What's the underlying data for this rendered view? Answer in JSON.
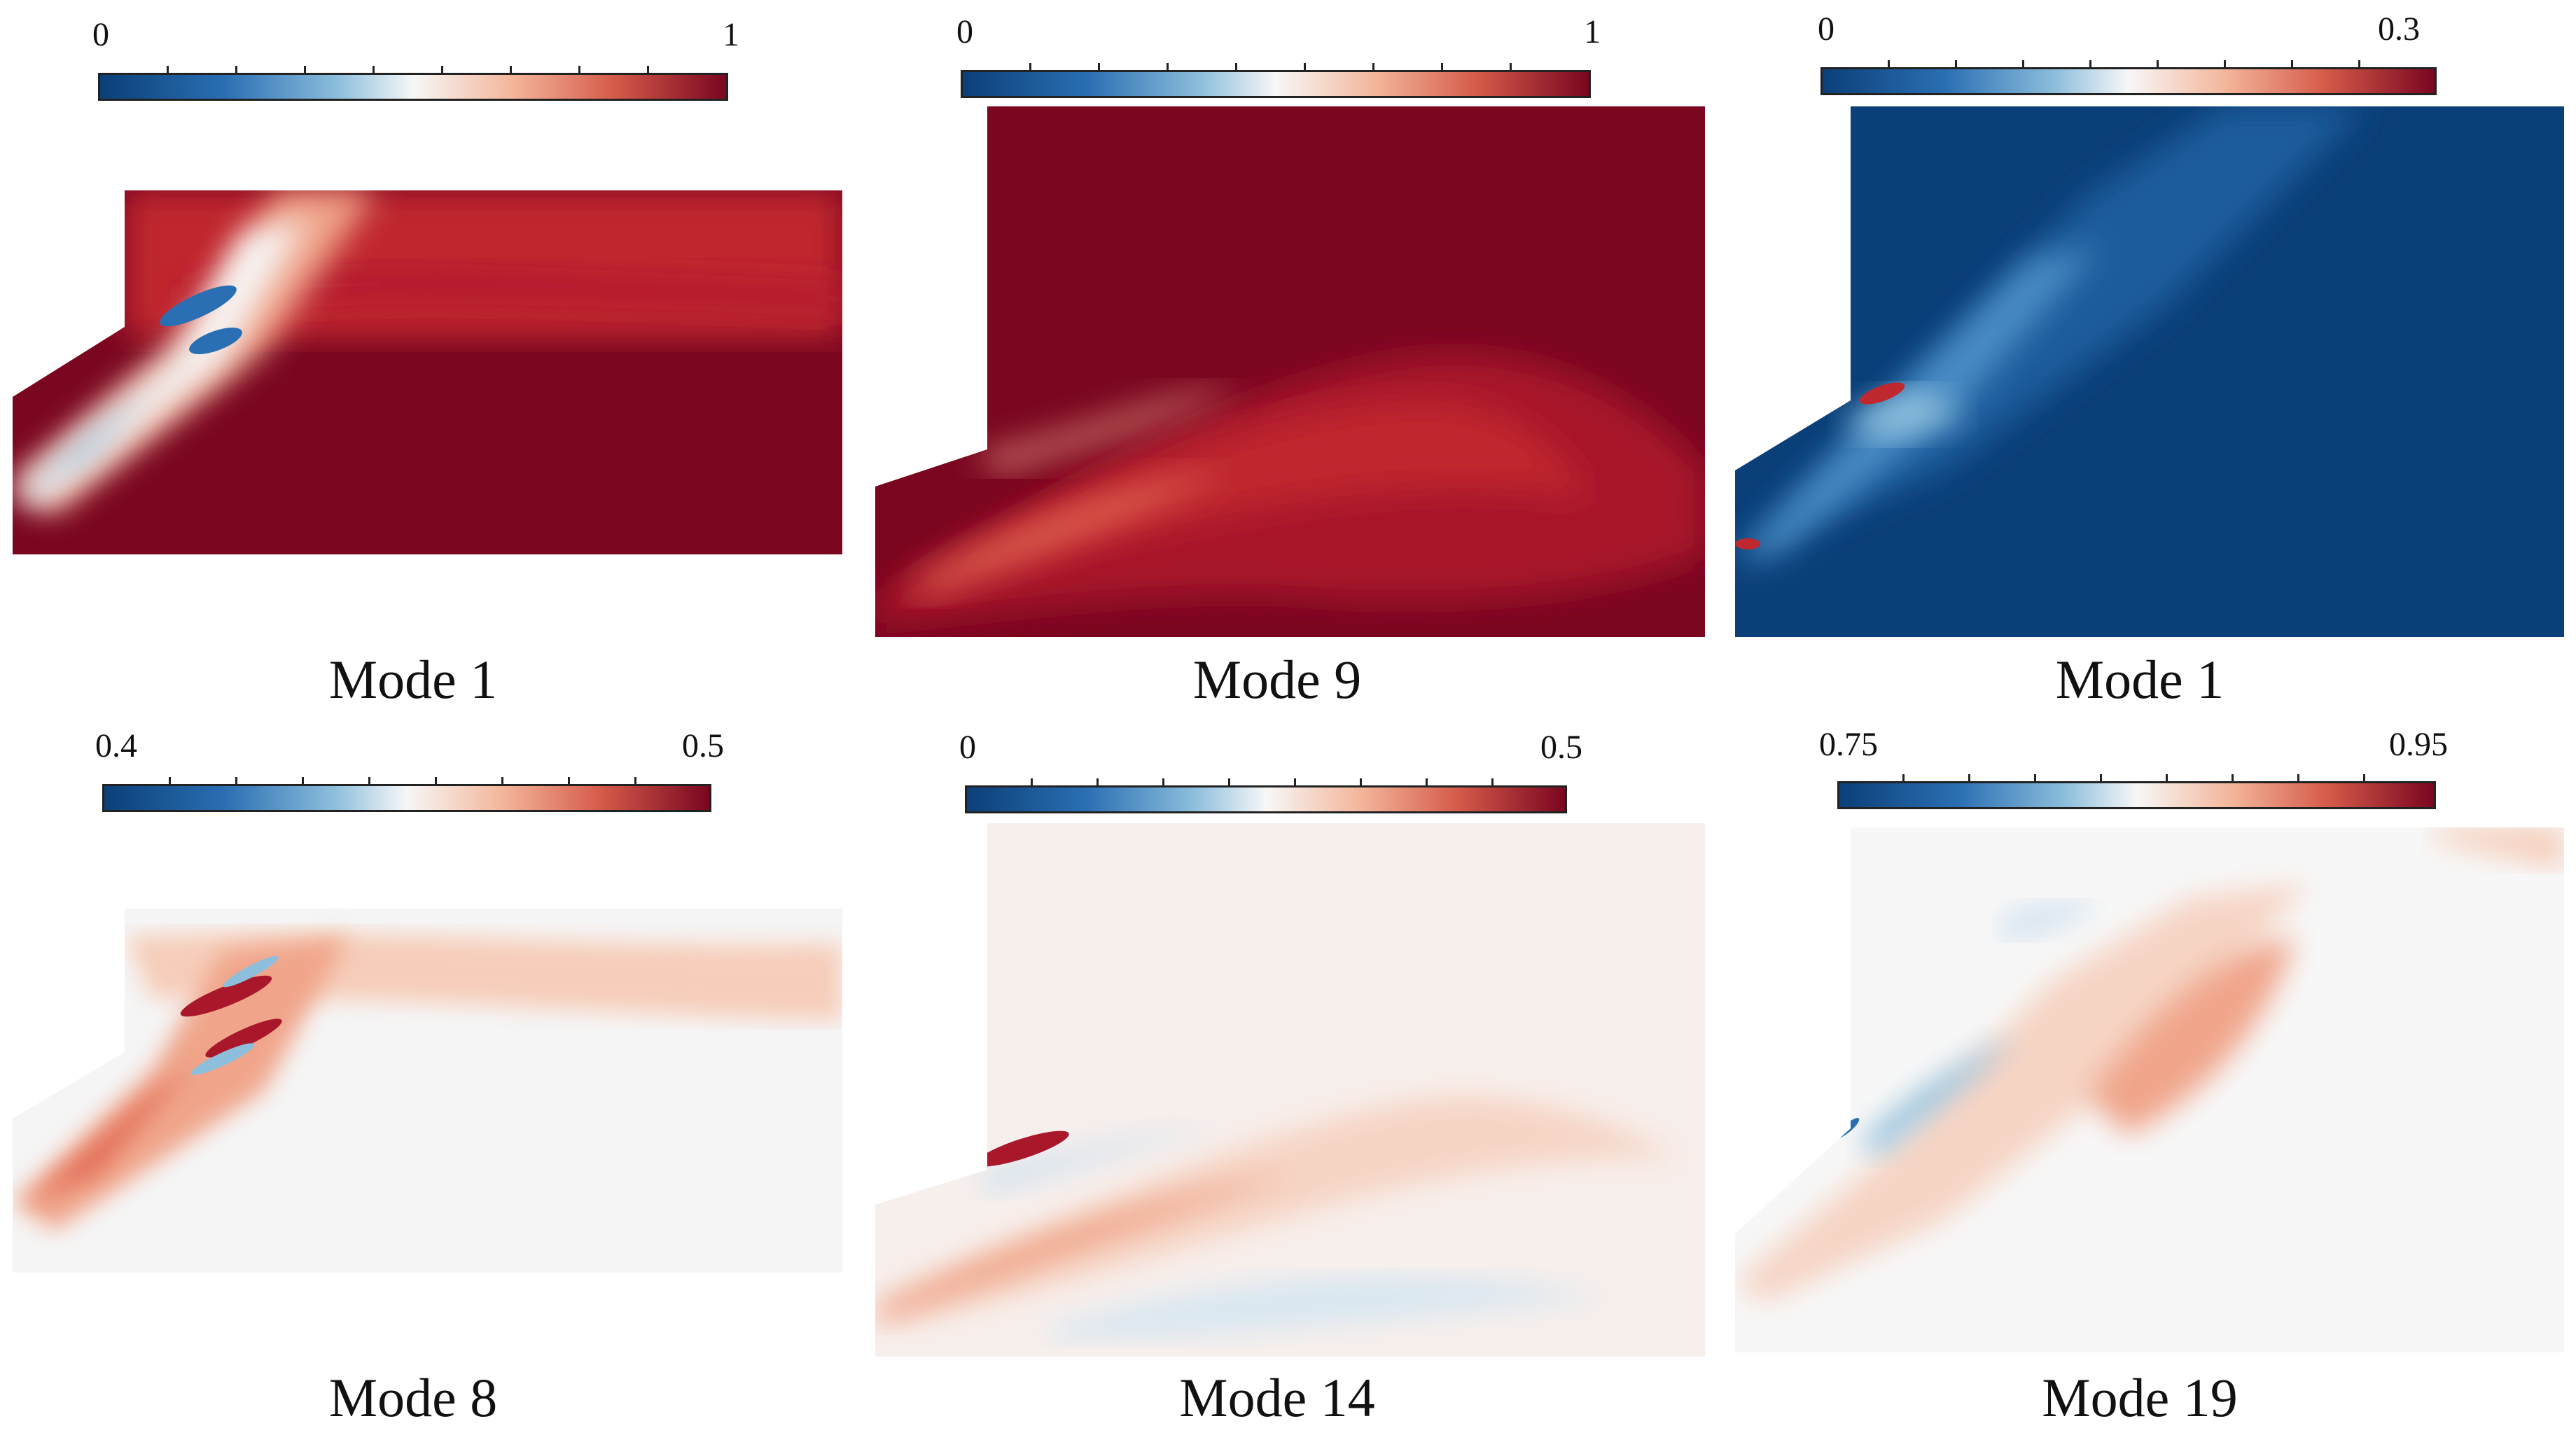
{
  "panels": [
    {
      "cbar_min": "0",
      "cbar_max": "1",
      "title": "Mode 1",
      "colormap": "RdBu_r"
    },
    {
      "cbar_min": "0",
      "cbar_max": "1",
      "title": "Mode 9",
      "colormap": "RdBu_r"
    },
    {
      "cbar_min": "0",
      "cbar_max": "0.3",
      "title": "Mode 1",
      "colormap": "RdBu_r"
    },
    {
      "cbar_min": "0.4",
      "cbar_max": "0.5",
      "title": "Mode 8",
      "colormap": "RdBu_r"
    },
    {
      "cbar_min": "0",
      "cbar_max": "0.5",
      "title": "Mode 14",
      "colormap": "RdBu_r"
    },
    {
      "cbar_min": "0.75",
      "cbar_max": "0.95",
      "title": "Mode 19",
      "colormap": "RdBu_r"
    }
  ],
  "colors": {
    "dark_red": "#7a0620",
    "red": "#c0282f",
    "salmon": "#f0a58a",
    "white": "#f7f7f7",
    "light_blue": "#8dbedc",
    "blue": "#2a6fb3",
    "dark_blue": "#0b3f78"
  }
}
